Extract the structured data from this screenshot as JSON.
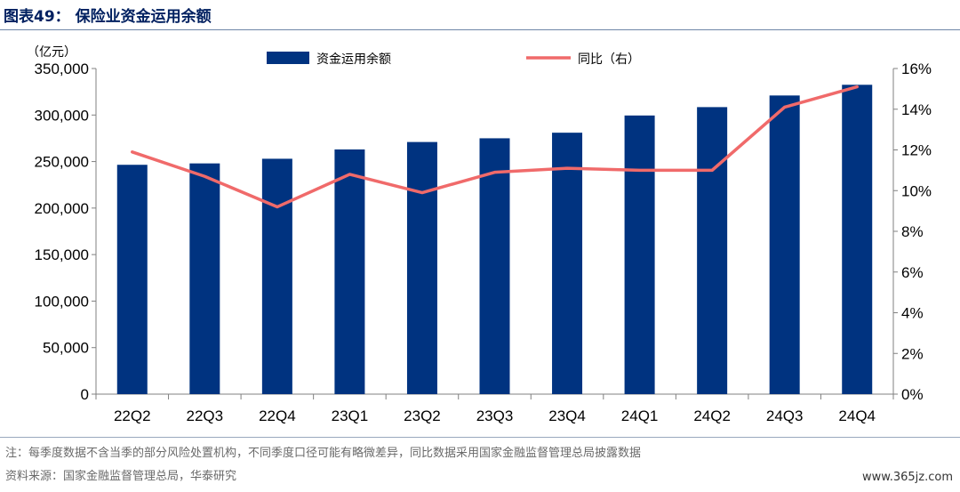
{
  "header": {
    "title": "图表49：  保险业资金运用余额"
  },
  "footer": {
    "note": "注：每季度数据不含当季的部分风险处置机构，不同季度口径可能有略微差异，同比数据采用国家金融监督管理总局披露数据",
    "source": "资料来源：国家金融监督管理总局，华泰研究",
    "watermark": "www.365jz.com"
  },
  "colors": {
    "bar": "#003380",
    "line": "#f06a6a",
    "title": "#002060"
  },
  "chart_data": {
    "type": "bar",
    "categories": [
      "22Q2",
      "22Q3",
      "22Q4",
      "23Q1",
      "23Q2",
      "23Q3",
      "23Q4",
      "24Q1",
      "24Q2",
      "24Q3",
      "24Q4"
    ],
    "series": [
      {
        "name": "资金运用余额",
        "type": "bar",
        "axis": "left",
        "values": [
          246500,
          248000,
          253000,
          263000,
          271000,
          275000,
          281000,
          299500,
          308500,
          321000,
          332500
        ]
      },
      {
        "name": "同比（右）",
        "type": "line",
        "axis": "right",
        "values": [
          11.9,
          10.7,
          9.2,
          10.8,
          9.9,
          10.9,
          11.1,
          11.0,
          11.0,
          14.1,
          15.1
        ]
      }
    ],
    "y_left": {
      "unit_label": "（亿元）",
      "min": 0,
      "max": 350000,
      "step": 50000,
      "tick_labels": [
        "0",
        "50,000",
        "100,000",
        "150,000",
        "200,000",
        "250,000",
        "300,000",
        "350,000"
      ]
    },
    "y_right": {
      "min": 0,
      "max": 16,
      "step": 2,
      "tick_labels": [
        "0%",
        "2%",
        "4%",
        "6%",
        "8%",
        "10%",
        "12%",
        "14%",
        "16%"
      ]
    },
    "legend_position": "top",
    "grid": false
  }
}
